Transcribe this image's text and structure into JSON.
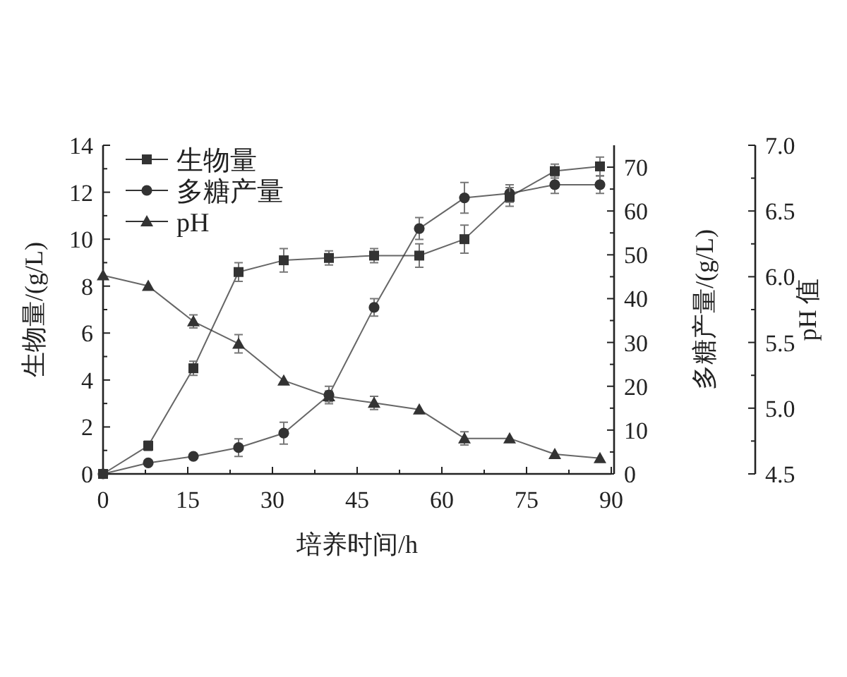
{
  "chart_data": {
    "type": "line",
    "xlabel": "培养时间/h",
    "ylabel": "生物量/(g/L)",
    "y2label": "多糖产量/(g/L)",
    "y3label": "pH 值",
    "x": [
      0,
      8,
      16,
      24,
      32,
      40,
      48,
      56,
      64,
      72,
      80,
      88
    ],
    "xlim": [
      0,
      90
    ],
    "xticks": [
      0,
      15,
      30,
      45,
      60,
      75,
      90
    ],
    "ylim": [
      0,
      14
    ],
    "yticks": [
      0,
      2,
      4,
      6,
      8,
      10,
      12,
      14
    ],
    "y2lim": [
      0,
      75
    ],
    "y2ticks": [
      0,
      10,
      20,
      30,
      40,
      50,
      60,
      70
    ],
    "y3lim": [
      4.5,
      7.0
    ],
    "y3ticks": [
      {
        "value": 4.5,
        "label": "4.5"
      },
      {
        "value": 5.0,
        "label": "5.0"
      },
      {
        "value": 5.5,
        "label": "5.5"
      },
      {
        "value": 6.0,
        "label": "6.0"
      },
      {
        "value": 6.5,
        "label": "6.5"
      },
      {
        "value": 7.0,
        "label": "7.0"
      }
    ],
    "legend": "top left",
    "series": [
      {
        "name": "生物量",
        "color": "#333333",
        "marker": "square",
        "values": [
          0,
          1.2,
          4.5,
          8.6,
          9.1,
          9.2,
          9.3,
          9.3,
          10.0,
          11.8,
          12.9,
          13.1
        ],
        "errors": [
          null,
          0.2,
          0.3,
          0.4,
          0.5,
          0.3,
          0.3,
          0.5,
          0.6,
          0.4,
          0.3,
          0.4
        ]
      },
      {
        "name": "多糖产量",
        "color": "#333333",
        "marker": "circle",
        "axis": "y2",
        "values": [
          0,
          2.5,
          4,
          6,
          9.3,
          18,
          38,
          56,
          63,
          64,
          66,
          66
        ],
        "errors": [
          null,
          null,
          null,
          2,
          2.5,
          2,
          2,
          2.5,
          3.5,
          2,
          2,
          2
        ]
      },
      {
        "name": "pH",
        "color": "#333333",
        "marker": "triangle",
        "axis": "y3",
        "values": [
          6.01,
          5.93,
          5.66,
          5.49,
          5.21,
          5.09,
          5.04,
          4.99,
          4.77,
          4.77,
          4.65,
          4.62
        ],
        "errors": [
          null,
          null,
          0.05,
          0.07,
          null,
          0.04,
          0.05,
          null,
          0.05,
          null,
          null,
          null
        ]
      }
    ]
  }
}
